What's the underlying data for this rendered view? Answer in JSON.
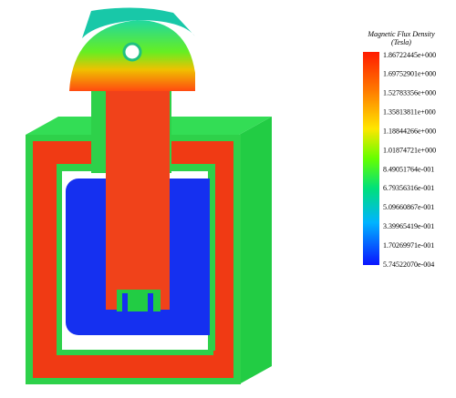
{
  "legend": {
    "title": "Magnetic Flux Density",
    "unit": "(Tesla)",
    "labels": [
      "1.86722445e+000",
      "1.69752901e+000",
      "1.52783356e+000",
      "1.35813811e+000",
      "1.18844266e+000",
      "1.01874721e+000",
      "8.49051764e-001",
      "6.79356316e-001",
      "5.09660867e-001",
      "3.39965419e-001",
      "1.70269971e-001",
      "5.74522070e-004"
    ]
  }
}
